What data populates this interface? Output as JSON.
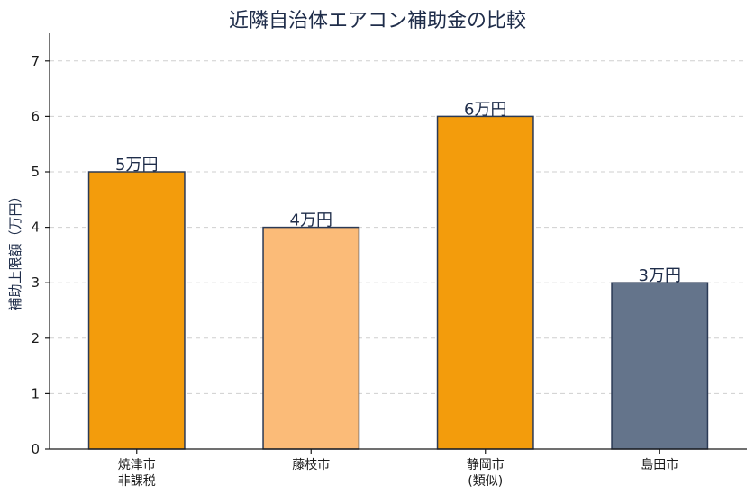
{
  "chart_data": {
    "type": "bar",
    "title": "近隣自治体エアコン補助金の比較",
    "ylabel": "補助上限額（万円）",
    "xlabel": "",
    "ylim": [
      0,
      7.5
    ],
    "yticks": [
      0,
      1,
      2,
      3,
      4,
      5,
      6,
      7
    ],
    "grid": true,
    "categories": [
      "焼津市\n非課税",
      "藤枝市",
      "静岡市\n(類似)",
      "島田市"
    ],
    "values": [
      5,
      4,
      6,
      3
    ],
    "value_labels": [
      "5万円",
      "4万円",
      "6万円",
      "3万円"
    ],
    "colors": [
      "#f39c0c",
      "#fbbb78",
      "#f39c0c",
      "#64748b"
    ]
  }
}
